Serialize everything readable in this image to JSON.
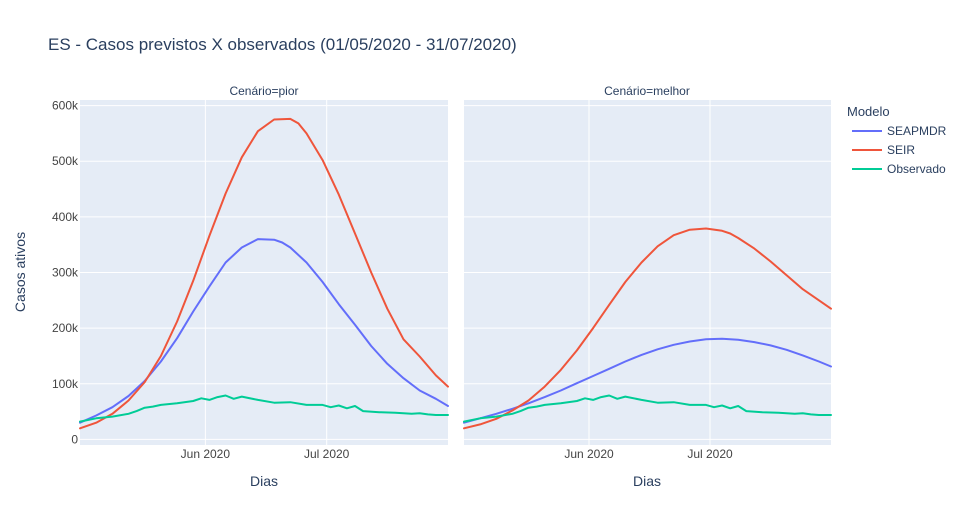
{
  "chart_data": {
    "type": "line",
    "title": "ES - Casos previstos X observados (01/05/2020 - 31/07/2020)",
    "xlabel": "Dias",
    "ylabel": "Casos ativos",
    "xlim": [
      "2020-05-01",
      "2020-07-31"
    ],
    "ylim": [
      -10000,
      610000
    ],
    "y_ticks": [
      0,
      100000,
      200000,
      300000,
      400000,
      500000,
      600000
    ],
    "y_tick_labels": [
      "0",
      "100k",
      "200k",
      "300k",
      "400k",
      "500k",
      "600k"
    ],
    "x_ticks": [
      "2020-06-01",
      "2020-07-01"
    ],
    "x_tick_labels": [
      "Jun 2020",
      "Jul 2020"
    ],
    "grid": true,
    "legend": {
      "title": "Modelo",
      "position": "right",
      "entries": [
        "SEAPMDR",
        "SEIR",
        "Observado"
      ]
    },
    "colors": {
      "SEAPMDR": "#636efa",
      "SEIR": "#ef553b",
      "Observado": "#00cc96"
    },
    "facets": [
      {
        "title": "Cenário=pior",
        "series": [
          {
            "name": "SEAPMDR",
            "x": [
              "2020-05-01",
              "2020-05-05",
              "2020-05-09",
              "2020-05-13",
              "2020-05-17",
              "2020-05-21",
              "2020-05-25",
              "2020-05-29",
              "2020-06-02",
              "2020-06-06",
              "2020-06-10",
              "2020-06-14",
              "2020-06-18",
              "2020-06-20",
              "2020-06-22",
              "2020-06-26",
              "2020-06-30",
              "2020-07-04",
              "2020-07-08",
              "2020-07-12",
              "2020-07-16",
              "2020-07-20",
              "2020-07-24",
              "2020-07-28",
              "2020-07-31"
            ],
            "y": [
              30000,
              43000,
              58000,
              78000,
              105000,
              140000,
              182000,
              230000,
              275000,
              318000,
              345000,
              360000,
              359000,
              354000,
              345000,
              318000,
              283000,
              243000,
              206000,
              168000,
              136000,
              110000,
              88000,
              73000,
              60000
            ]
          },
          {
            "name": "SEIR",
            "x": [
              "2020-05-01",
              "2020-05-05",
              "2020-05-09",
              "2020-05-13",
              "2020-05-17",
              "2020-05-21",
              "2020-05-25",
              "2020-05-29",
              "2020-06-02",
              "2020-06-06",
              "2020-06-10",
              "2020-06-14",
              "2020-06-18",
              "2020-06-22",
              "2020-06-24",
              "2020-06-26",
              "2020-06-30",
              "2020-07-04",
              "2020-07-08",
              "2020-07-12",
              "2020-07-16",
              "2020-07-20",
              "2020-07-24",
              "2020-07-28",
              "2020-07-31"
            ],
            "y": [
              20000,
              30000,
              46000,
              70000,
              103000,
              150000,
              212000,
              285000,
              366000,
              442000,
              507000,
              554000,
              575000,
              576000,
              568000,
              550000,
              502000,
              440000,
              370000,
              300000,
              235000,
              180000,
              149000,
              115000,
              95000
            ]
          },
          {
            "name": "Observado",
            "x": [
              "2020-05-01",
              "2020-05-05",
              "2020-05-09",
              "2020-05-13",
              "2020-05-15",
              "2020-05-17",
              "2020-05-19",
              "2020-05-21",
              "2020-05-25",
              "2020-05-29",
              "2020-05-31",
              "2020-06-02",
              "2020-06-04",
              "2020-06-06",
              "2020-06-08",
              "2020-06-10",
              "2020-06-14",
              "2020-06-18",
              "2020-06-22",
              "2020-06-26",
              "2020-06-30",
              "2020-07-02",
              "2020-07-04",
              "2020-07-06",
              "2020-07-08",
              "2020-07-10",
              "2020-07-14",
              "2020-07-18",
              "2020-07-22",
              "2020-07-24",
              "2020-07-26",
              "2020-07-28",
              "2020-07-31"
            ],
            "y": [
              32000,
              38000,
              41000,
              46000,
              51000,
              57000,
              59000,
              62000,
              65000,
              69000,
              74000,
              71000,
              76000,
              79000,
              73000,
              77000,
              71000,
              66000,
              67000,
              62000,
              62000,
              58000,
              61000,
              56000,
              60000,
              51000,
              49000,
              48000,
              46000,
              47000,
              45000,
              44000,
              44000
            ]
          }
        ]
      },
      {
        "title": "Cenário=melhor",
        "series": [
          {
            "name": "SEAPMDR",
            "x": [
              "2020-05-01",
              "2020-05-05",
              "2020-05-09",
              "2020-05-13",
              "2020-05-17",
              "2020-05-21",
              "2020-05-25",
              "2020-05-29",
              "2020-06-02",
              "2020-06-06",
              "2020-06-10",
              "2020-06-14",
              "2020-06-18",
              "2020-06-22",
              "2020-06-26",
              "2020-06-30",
              "2020-07-04",
              "2020-07-08",
              "2020-07-12",
              "2020-07-16",
              "2020-07-20",
              "2020-07-24",
              "2020-07-28",
              "2020-07-31"
            ],
            "y": [
              30000,
              38000,
              46000,
              55000,
              65000,
              76000,
              88000,
              101000,
              114000,
              127000,
              140000,
              152000,
              162000,
              170000,
              176000,
              180000,
              181000,
              179000,
              175000,
              169000,
              161000,
              151000,
              140000,
              131000
            ]
          },
          {
            "name": "SEIR",
            "x": [
              "2020-05-01",
              "2020-05-05",
              "2020-05-09",
              "2020-05-13",
              "2020-05-17",
              "2020-05-21",
              "2020-05-25",
              "2020-05-29",
              "2020-06-02",
              "2020-06-06",
              "2020-06-10",
              "2020-06-14",
              "2020-06-18",
              "2020-06-22",
              "2020-06-26",
              "2020-06-30",
              "2020-07-04",
              "2020-07-06",
              "2020-07-08",
              "2020-07-12",
              "2020-07-16",
              "2020-07-20",
              "2020-07-24",
              "2020-07-28",
              "2020-07-31"
            ],
            "y": [
              20000,
              27000,
              37000,
              52000,
              70000,
              95000,
              125000,
              160000,
              200000,
              242000,
              283000,
              318000,
              347000,
              367000,
              377000,
              379000,
              375000,
              370000,
              362000,
              343000,
              320000,
              295000,
              270000,
              250000,
              235000
            ]
          },
          {
            "name": "Observado",
            "x": [
              "2020-05-01",
              "2020-05-05",
              "2020-05-09",
              "2020-05-13",
              "2020-05-15",
              "2020-05-17",
              "2020-05-19",
              "2020-05-21",
              "2020-05-25",
              "2020-05-29",
              "2020-05-31",
              "2020-06-02",
              "2020-06-04",
              "2020-06-06",
              "2020-06-08",
              "2020-06-10",
              "2020-06-14",
              "2020-06-18",
              "2020-06-22",
              "2020-06-26",
              "2020-06-30",
              "2020-07-02",
              "2020-07-04",
              "2020-07-06",
              "2020-07-08",
              "2020-07-10",
              "2020-07-14",
              "2020-07-18",
              "2020-07-22",
              "2020-07-24",
              "2020-07-26",
              "2020-07-28",
              "2020-07-31"
            ],
            "y": [
              32000,
              38000,
              41000,
              46000,
              51000,
              57000,
              59000,
              62000,
              65000,
              69000,
              74000,
              71000,
              76000,
              79000,
              73000,
              77000,
              71000,
              66000,
              67000,
              62000,
              62000,
              58000,
              61000,
              56000,
              60000,
              51000,
              49000,
              48000,
              46000,
              47000,
              45000,
              44000,
              44000
            ]
          }
        ]
      }
    ]
  }
}
